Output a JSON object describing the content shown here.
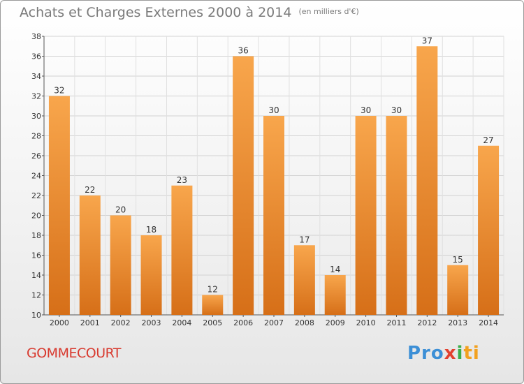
{
  "chart_data": {
    "type": "bar",
    "title": "Achats et Charges Externes 2000 à 2014",
    "unit_note": "(en milliers d'€)",
    "categories": [
      "2000",
      "2001",
      "2002",
      "2003",
      "2004",
      "2005",
      "2006",
      "2007",
      "2008",
      "2009",
      "2010",
      "2011",
      "2012",
      "2013",
      "2014"
    ],
    "values": [
      32,
      22,
      20,
      18,
      23,
      12,
      36,
      30,
      17,
      14,
      30,
      30,
      37,
      15,
      27
    ],
    "ylim": [
      10,
      38
    ],
    "yticks": [
      10,
      12,
      14,
      16,
      18,
      20,
      22,
      24,
      26,
      28,
      30,
      32,
      34,
      36,
      38
    ],
    "grid": true,
    "bar_color": "#f39a3c",
    "bar_color_dark": "#d9701a"
  },
  "footer": {
    "city": "GOMMECOURT",
    "logo": [
      "Pro",
      "x",
      "i",
      "ti"
    ]
  }
}
